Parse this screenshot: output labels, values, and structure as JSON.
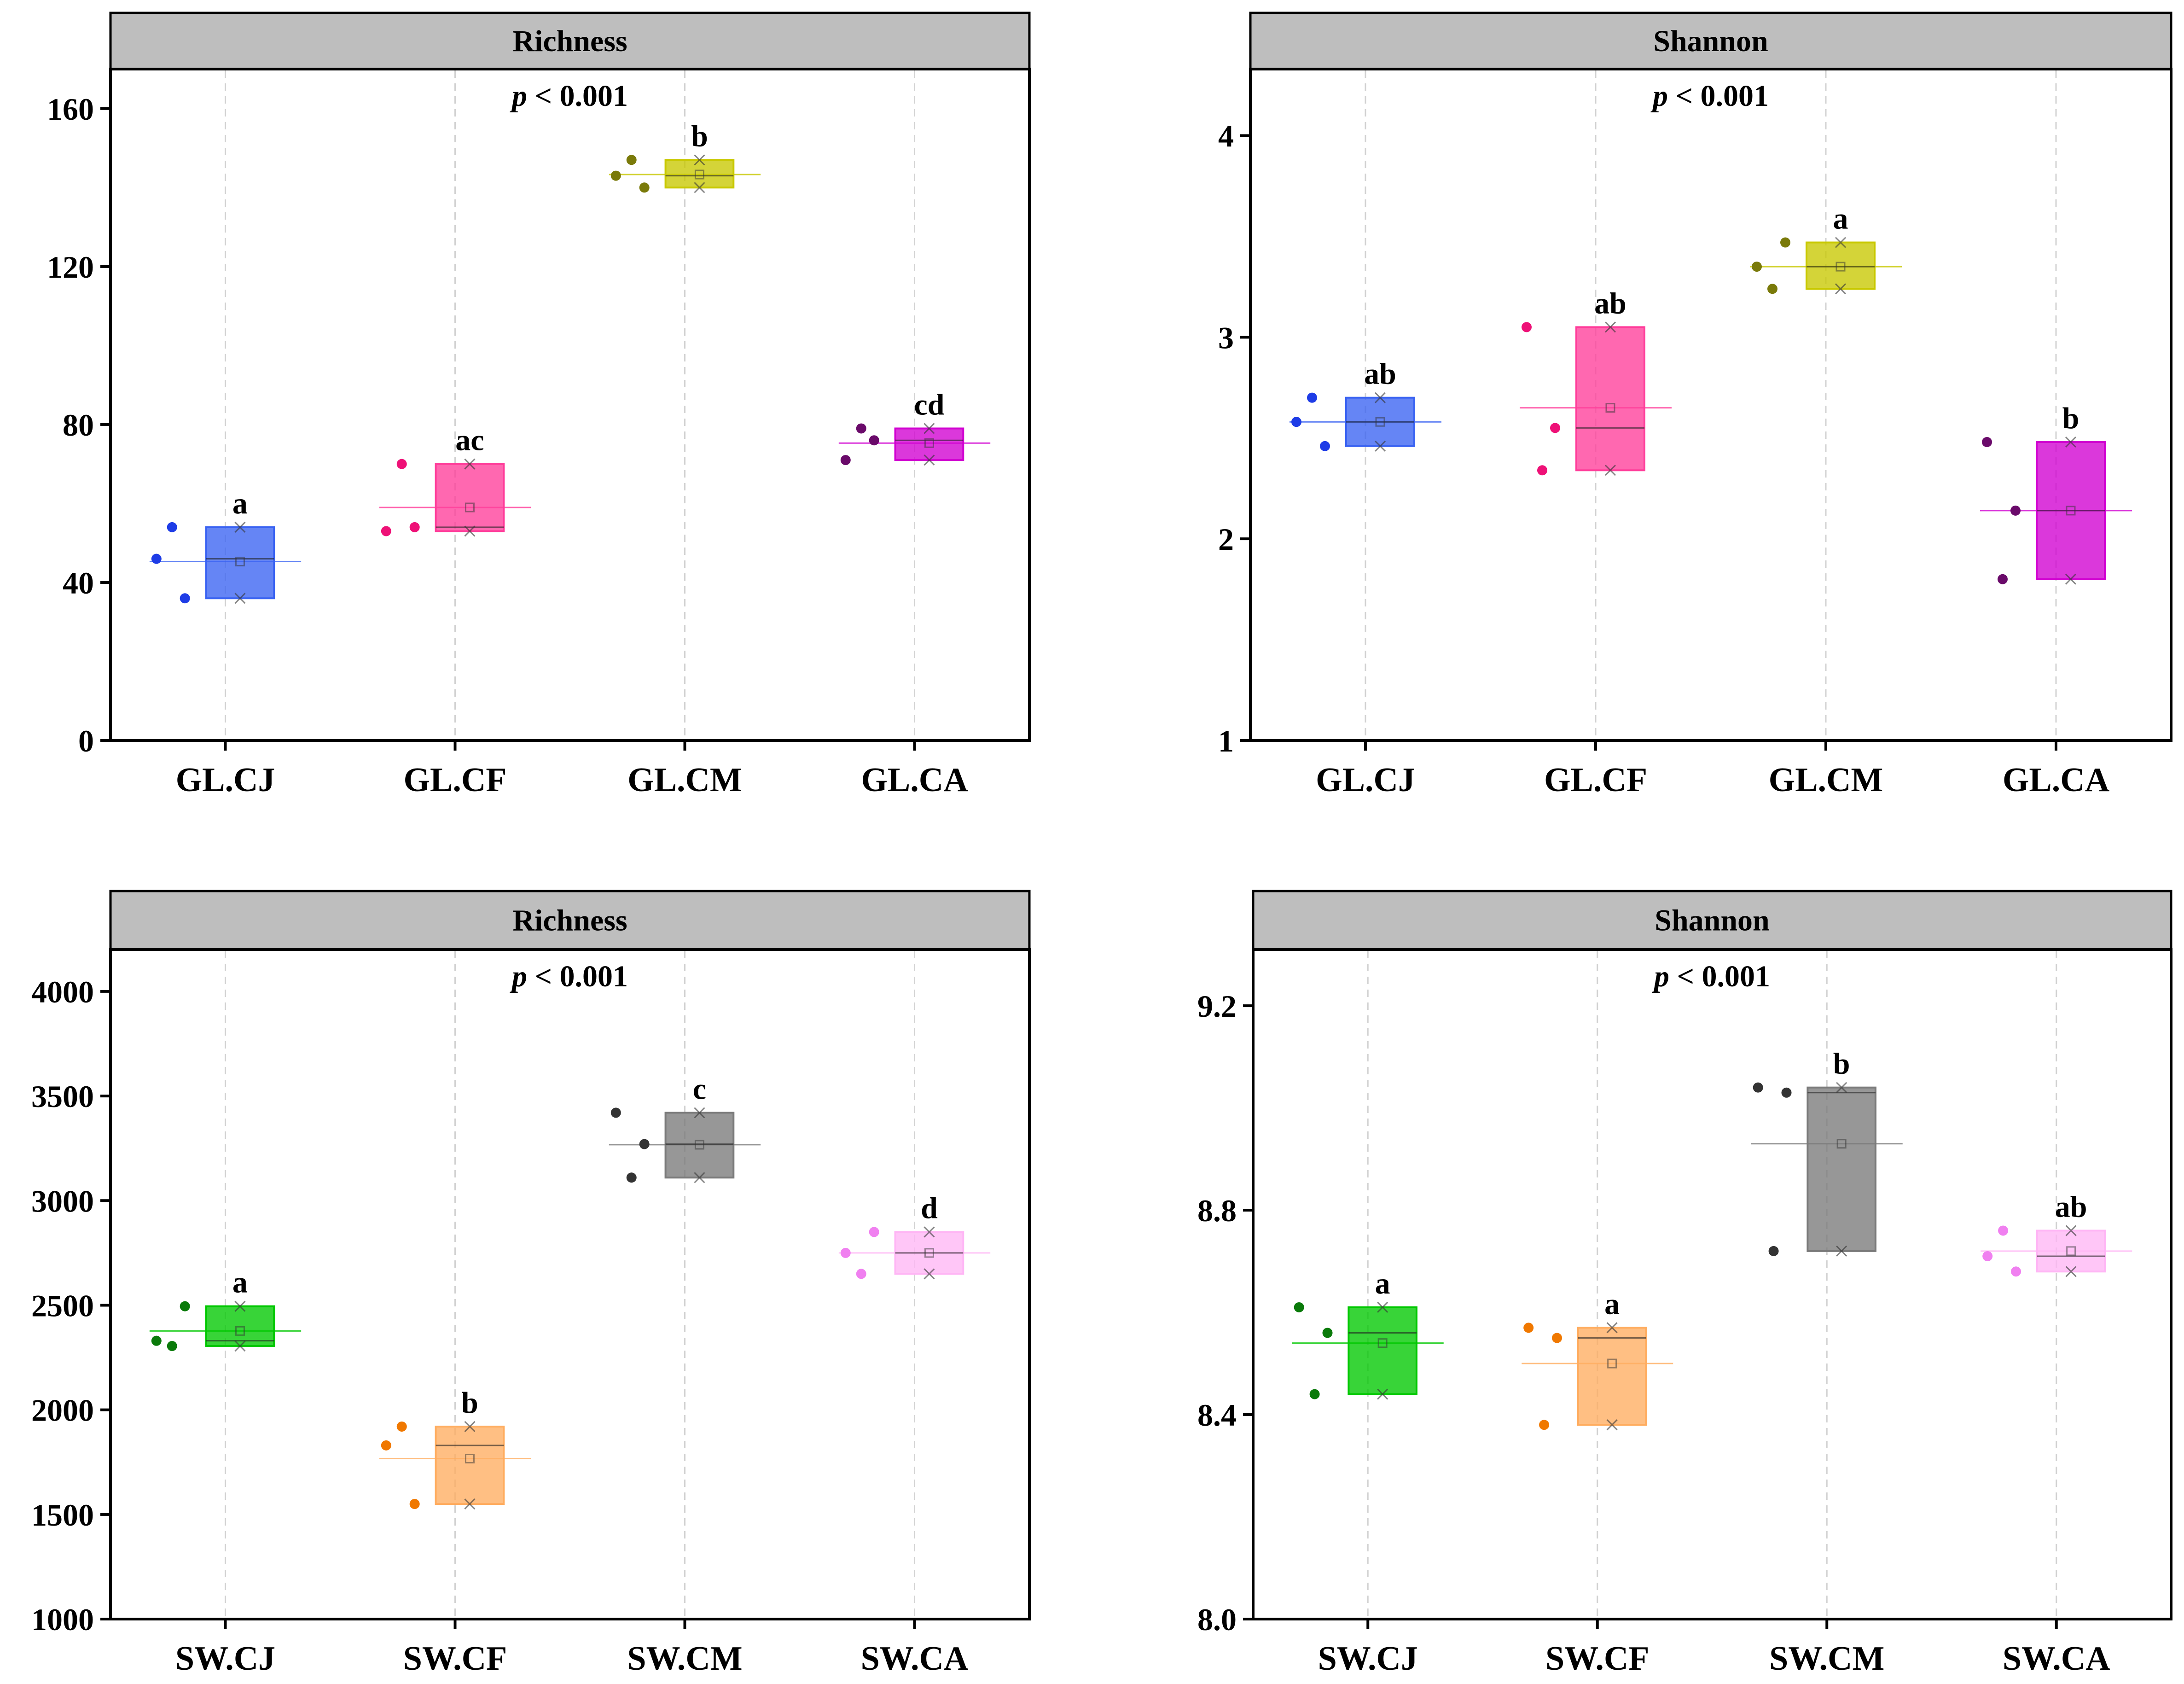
{
  "chart_data": [
    {
      "type": "box",
      "title": "Richness",
      "p_value": {
        "italic": "p",
        "rest": " < 0.001"
      },
      "categories": [
        "GL.CJ",
        "GL.CF",
        "GL.CM",
        "GL.CA"
      ],
      "ylim": [
        0,
        170
      ],
      "yticks": [
        0,
        40,
        80,
        120,
        160
      ],
      "ytick_labels": [
        "0",
        "40",
        "80",
        "120",
        "160"
      ],
      "colors": [
        "#3a63f2",
        "#ff3d9a",
        "#c8c800",
        "#d100d1"
      ],
      "dot_colors": [
        "#1e3ce6",
        "#ee1177",
        "#7a7a0a",
        "#6a0a6a"
      ],
      "groups": [
        {
          "points": [
            46,
            36,
            54
          ],
          "q1": 36,
          "median": 46,
          "q3": 54,
          "mean": 45.3,
          "letter": "a"
        },
        {
          "points": [
            53,
            54,
            70
          ],
          "q1": 53,
          "median": 54,
          "q3": 70,
          "mean": 59,
          "letter": "ac"
        },
        {
          "points": [
            143,
            140,
            147
          ],
          "q1": 140,
          "median": 143,
          "q3": 147,
          "mean": 143.3,
          "letter": "b"
        },
        {
          "points": [
            71,
            76,
            79
          ],
          "q1": 71,
          "median": 76,
          "q3": 79,
          "mean": 75.3,
          "letter": "cd"
        }
      ]
    },
    {
      "type": "box",
      "title": "Shannon",
      "p_value": {
        "italic": "p",
        "rest": " < 0.001"
      },
      "categories": [
        "GL.CJ",
        "GL.CF",
        "GL.CM",
        "GL.CA"
      ],
      "ylim": [
        1,
        4.33
      ],
      "yticks": [
        1,
        2,
        3,
        4
      ],
      "ytick_labels": [
        "1",
        "2",
        "3",
        "4"
      ],
      "colors": [
        "#3a63f2",
        "#ff3d9a",
        "#c8c800",
        "#d100d1"
      ],
      "dot_colors": [
        "#1e3ce6",
        "#ee1177",
        "#7a7a0a",
        "#6a0a6a"
      ],
      "groups": [
        {
          "points": [
            2.58,
            2.46,
            2.7
          ],
          "q1": 2.46,
          "median": 2.58,
          "q3": 2.7,
          "mean": 2.58,
          "letter": "ab"
        },
        {
          "points": [
            3.05,
            2.55,
            2.34
          ],
          "q1": 2.34,
          "median": 2.55,
          "q3": 3.05,
          "mean": 2.65,
          "letter": "ab"
        },
        {
          "points": [
            3.35,
            3.47,
            3.24
          ],
          "q1": 3.24,
          "median": 3.35,
          "q3": 3.47,
          "mean": 3.35,
          "letter": "a"
        },
        {
          "points": [
            2.48,
            2.14,
            1.8
          ],
          "q1": 1.8,
          "median": 2.14,
          "q3": 2.48,
          "mean": 2.14,
          "letter": "b"
        }
      ]
    },
    {
      "type": "box",
      "title": "Richness",
      "p_value": {
        "italic": "p",
        "rest": " < 0.001"
      },
      "categories": [
        "SW.CJ",
        "SW.CF",
        "SW.CM",
        "SW.CA"
      ],
      "ylim": [
        1000,
        4200
      ],
      "yticks": [
        1000,
        1500,
        2000,
        2500,
        3000,
        3500,
        4000
      ],
      "ytick_labels": [
        "1000",
        "1500",
        "2000",
        "2500",
        "3000",
        "3500",
        "4000"
      ],
      "colors": [
        "#00c800",
        "#ffad60",
        "#7a7a7a",
        "#ffb6f5"
      ],
      "dot_colors": [
        "#0a7a0a",
        "#f07800",
        "#333333",
        "#f080f0"
      ],
      "groups": [
        {
          "points": [
            2330,
            2495,
            2305
          ],
          "q1": 2305,
          "median": 2330,
          "q3": 2495,
          "mean": 2377,
          "letter": "a"
        },
        {
          "points": [
            1830,
            1550,
            1920
          ],
          "q1": 1550,
          "median": 1830,
          "q3": 1920,
          "mean": 1767,
          "letter": "b"
        },
        {
          "points": [
            3420,
            3270,
            3110
          ],
          "q1": 3110,
          "median": 3270,
          "q3": 3420,
          "mean": 3267,
          "letter": "c"
        },
        {
          "points": [
            2750,
            2850,
            2650
          ],
          "q1": 2650,
          "median": 2750,
          "q3": 2850,
          "mean": 2750,
          "letter": "d"
        }
      ]
    },
    {
      "type": "box",
      "title": "Shannon",
      "p_value": {
        "italic": "p",
        "rest": " < 0.001"
      },
      "categories": [
        "SW.CJ",
        "SW.CF",
        "SW.CM",
        "SW.CA"
      ],
      "ylim": [
        8.0,
        9.31
      ],
      "yticks": [
        8.0,
        8.4,
        8.8,
        9.2
      ],
      "ytick_labels": [
        "8.0",
        "8.4",
        "8.8",
        "9.2"
      ],
      "colors": [
        "#00c800",
        "#ffad60",
        "#7a7a7a",
        "#ffb6f5"
      ],
      "dot_colors": [
        "#0a7a0a",
        "#f07800",
        "#333333",
        "#f080f0"
      ],
      "groups": [
        {
          "points": [
            8.61,
            8.56,
            8.44
          ],
          "q1": 8.44,
          "median": 8.56,
          "q3": 8.61,
          "mean": 8.54,
          "letter": "a"
        },
        {
          "points": [
            8.57,
            8.55,
            8.38
          ],
          "q1": 8.38,
          "median": 8.55,
          "q3": 8.57,
          "mean": 8.5,
          "letter": "a"
        },
        {
          "points": [
            9.04,
            9.03,
            8.72
          ],
          "q1": 8.72,
          "median": 9.03,
          "q3": 9.04,
          "mean": 8.93,
          "letter": "b"
        },
        {
          "points": [
            8.71,
            8.68,
            8.76
          ],
          "q1": 8.68,
          "median": 8.71,
          "q3": 8.76,
          "mean": 8.72,
          "letter": "ab"
        }
      ]
    }
  ]
}
